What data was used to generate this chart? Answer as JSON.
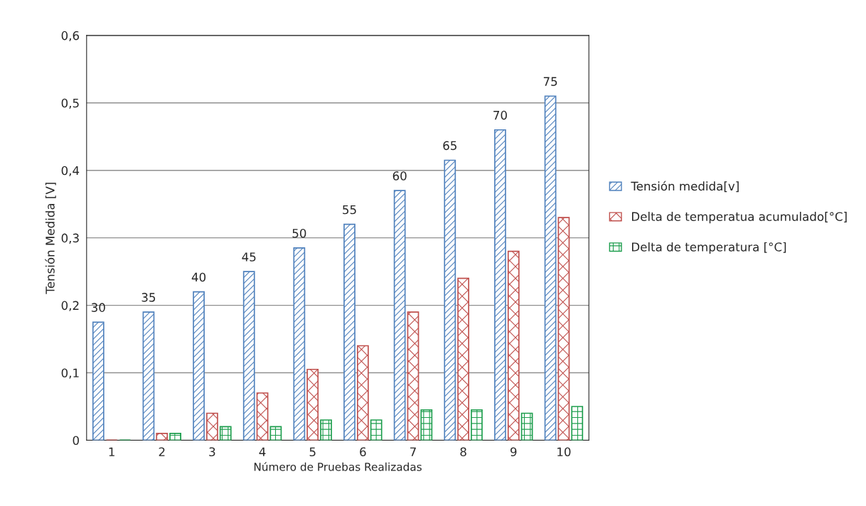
{
  "chart_data": {
    "type": "bar",
    "xlabel": "Número de Pruebas Realizadas",
    "ylabel": "Tensión Medida [V]",
    "categories": [
      "1",
      "2",
      "3",
      "4",
      "5",
      "6",
      "7",
      "8",
      "9",
      "10"
    ],
    "series": [
      {
        "name": "Tensión medida[v]",
        "color": "#4f81bd",
        "values": [
          0.175,
          0.19,
          0.22,
          0.25,
          0.285,
          0.32,
          0.37,
          0.415,
          0.46,
          0.51
        ]
      },
      {
        "name": "Delta de temperatua acumulado[°C]",
        "color": "#c0504d",
        "values": [
          0,
          0.01,
          0.04,
          0.07,
          0.105,
          0.14,
          0.19,
          0.24,
          0.28,
          0.33
        ]
      },
      {
        "name": "Delta de temperatura [°C]",
        "color": "#1e9e4e",
        "values": [
          0,
          0.01,
          0.02,
          0.02,
          0.03,
          0.03,
          0.045,
          0.045,
          0.04,
          0.05
        ]
      }
    ],
    "ylim": [
      0,
      0.6
    ],
    "yticks": [
      0,
      {
        "value": 0.1,
        "label": "0,1"
      },
      {
        "value": 0.2,
        "label": "0,2"
      },
      {
        "value": 0.3,
        "label": "0,3"
      },
      {
        "value": 0.4,
        "label": "0,4"
      },
      {
        "value": 0.5,
        "label": "0,5"
      },
      {
        "value": 0.6,
        "label": "0,6"
      }
    ],
    "grid": "y",
    "legend": "right",
    "annotations": [
      "30",
      "35",
      "40",
      "45",
      "50",
      "55",
      "60",
      "65",
      "70",
      "75"
    ]
  }
}
